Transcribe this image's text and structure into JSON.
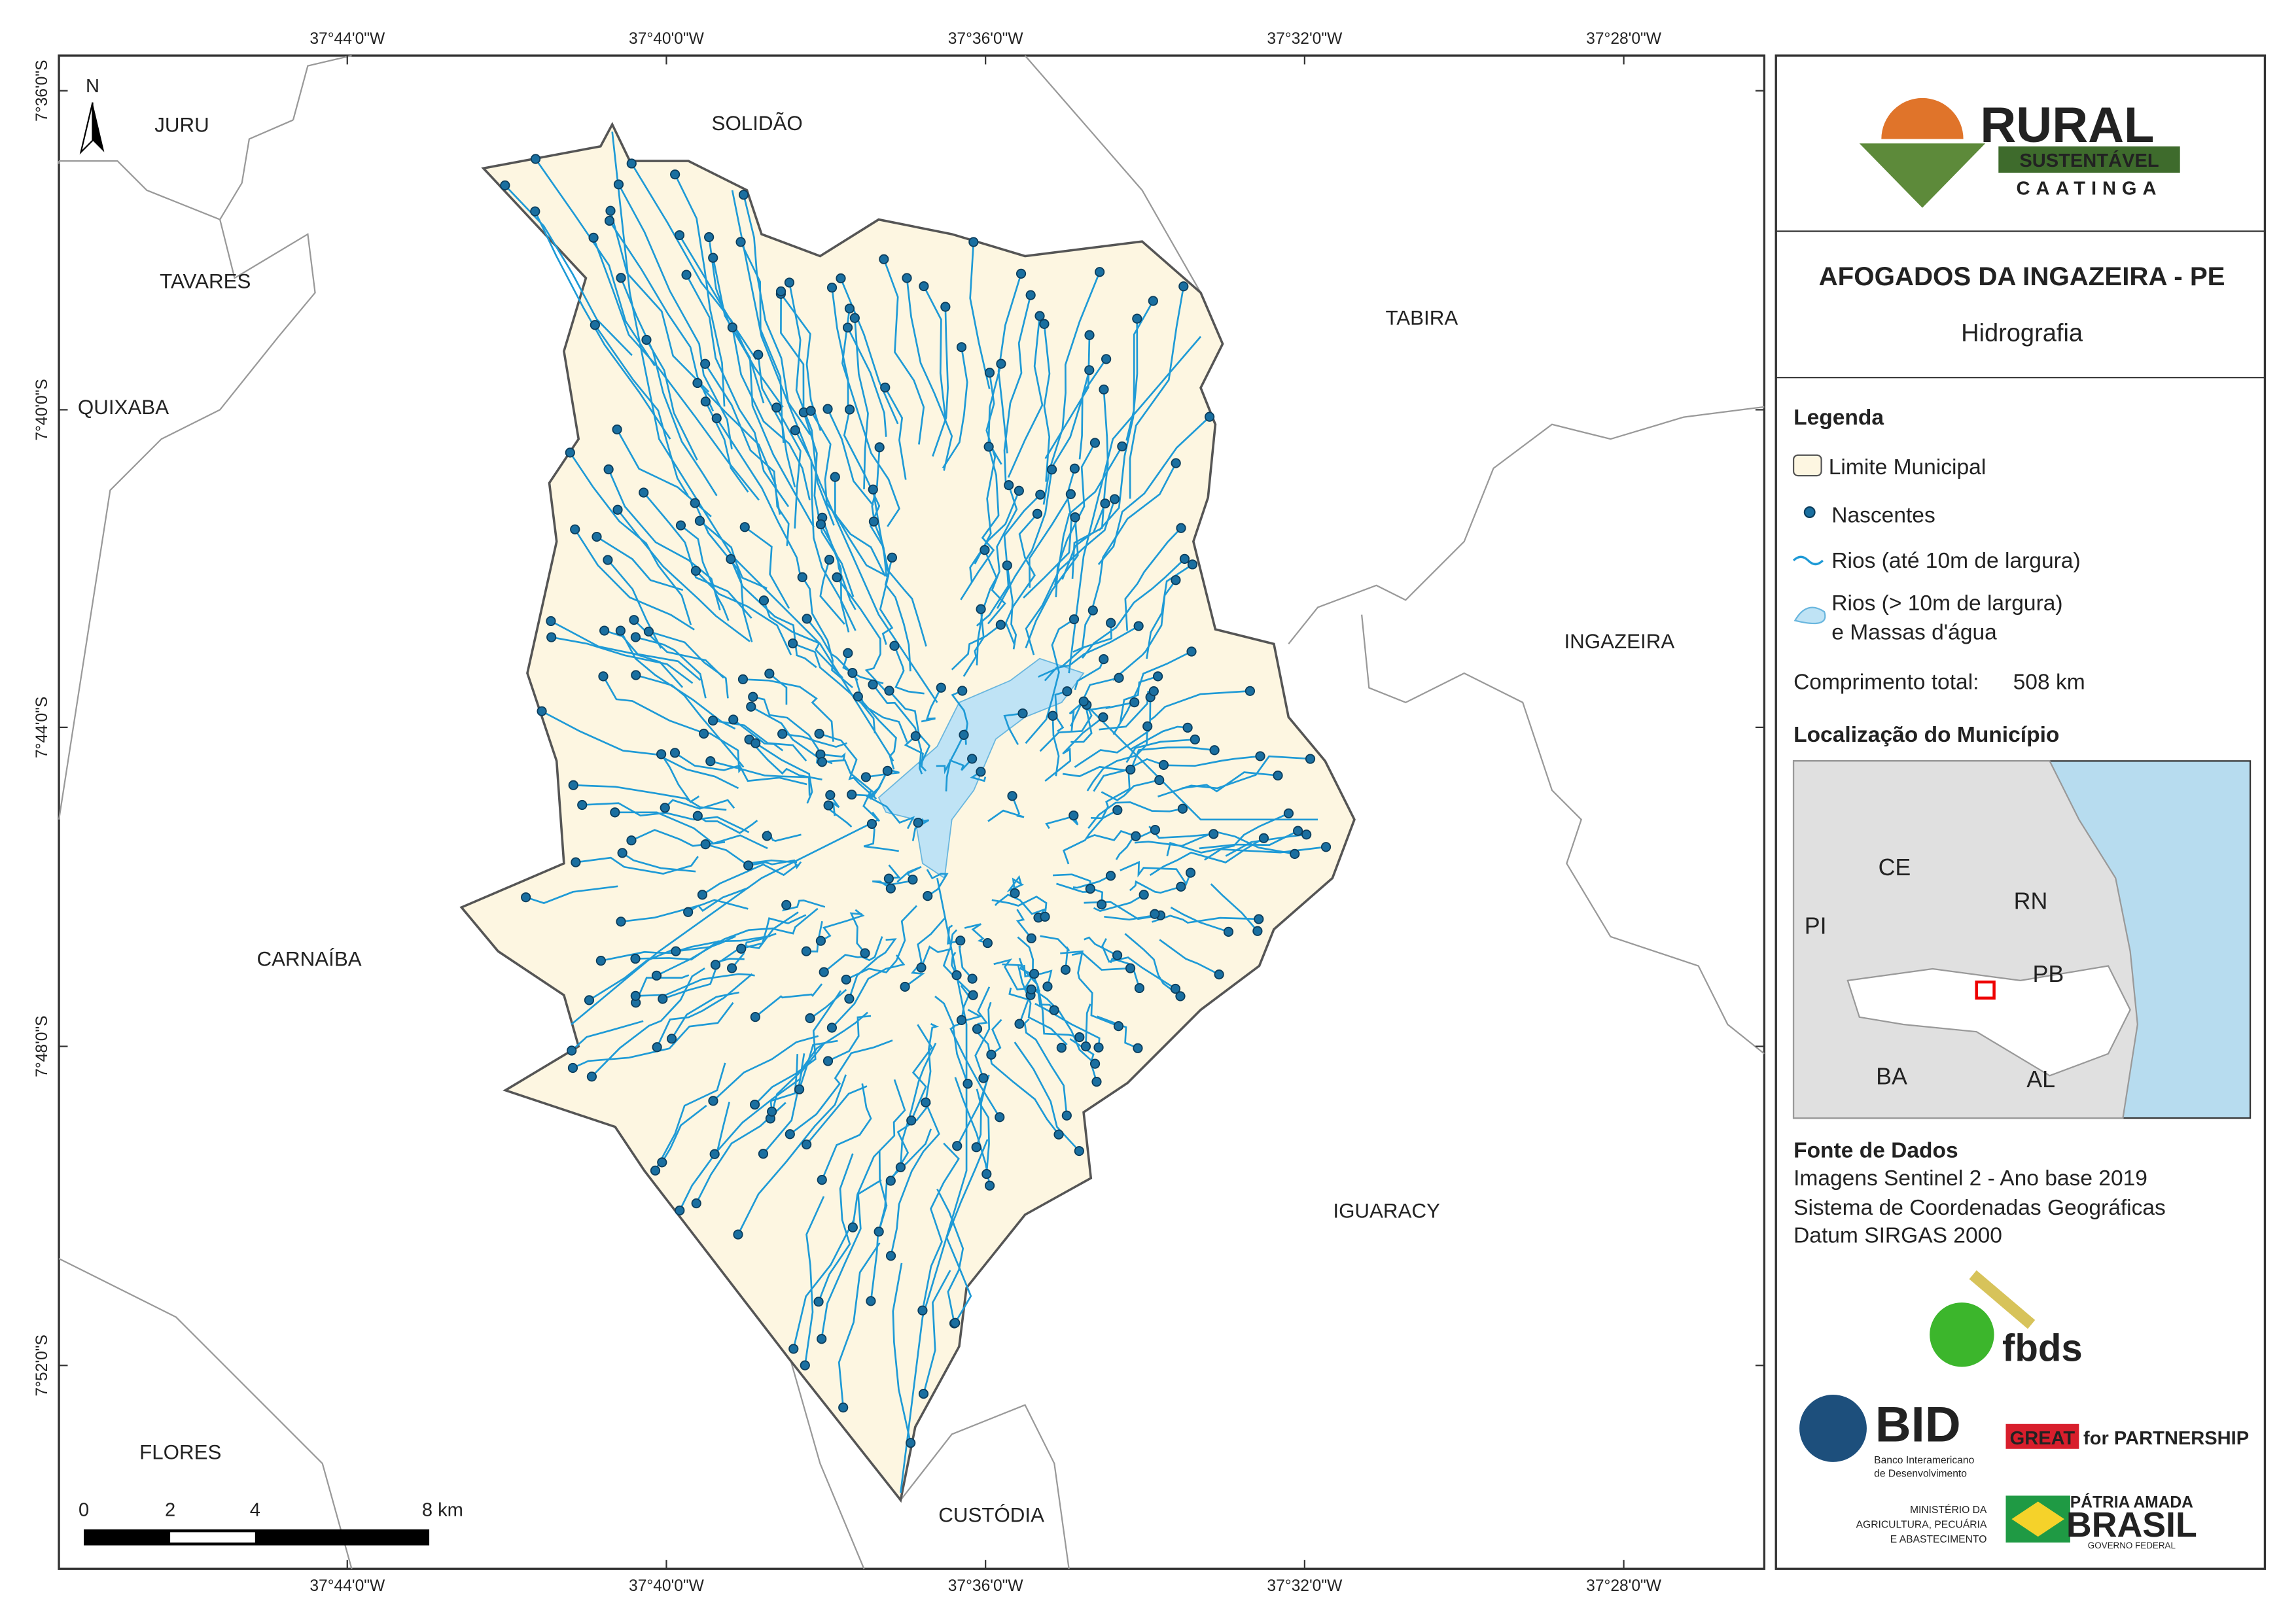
{
  "header": {
    "title": "AFOGADOS DA INGAZEIRA - PE",
    "subtitle": "Hidrografia"
  },
  "logo": {
    "name": "RURAL",
    "tag": "SUSTENTÁVEL",
    "region": "CAATINGA"
  },
  "map": {
    "north": "N",
    "longitudes": [
      "37°44'0\"W",
      "37°40'0\"W",
      "37°36'0\"W",
      "37°32'0\"W",
      "37°28'0\"W"
    ],
    "latitudes": [
      "7°36'0\"S",
      "7°40'0\"S",
      "7°44'0\"S",
      "7°48'0\"S",
      "7°52'0\"S"
    ],
    "places": [
      "JURU",
      "SOLIDÃO",
      "TAVARES",
      "TABIRA",
      "QUIXABA",
      "INGAZEIRA",
      "CARNAÍBA",
      "IGUARACY",
      "FLORES",
      "CUSTÓDIA"
    ],
    "scale": [
      "0",
      "2",
      "4",
      "8 km"
    ]
  },
  "legend": {
    "title": "Legenda",
    "items": [
      "Limite Municipal",
      "Nascentes",
      "Rios (até 10m de largura)",
      "Rios (> 10m de largura)",
      "e Massas d'água"
    ],
    "total_label": "Comprimento total:",
    "total_value": "508 km"
  },
  "inset": {
    "title": "Localização do Município",
    "states": [
      "CE",
      "RN",
      "PI",
      "PB",
      "BA",
      "AL"
    ]
  },
  "sources": {
    "title": "Fonte de Dados",
    "lines": [
      "Imagens Sentinel 2 - Ano base 2019",
      "Sistema de Coordenadas Geográficas",
      "Datum SIRGAS 2000"
    ]
  },
  "partners": {
    "fbds": "fbds",
    "bid": "BID",
    "bid_lines": [
      "Banco Interamericano",
      "de Desenvolvimento"
    ],
    "great": "GREAT",
    "great_rest": "for PARTNERSHIP",
    "ministry": [
      "MINISTÉRIO DA",
      "AGRICULTURA, PECUÁRIA",
      "E ABASTECIMENTO"
    ],
    "brasil_top": "PÁTRIA AMADA",
    "brasil": "BRASIL",
    "brasil_bottom": "GOVERNO FEDERAL"
  }
}
